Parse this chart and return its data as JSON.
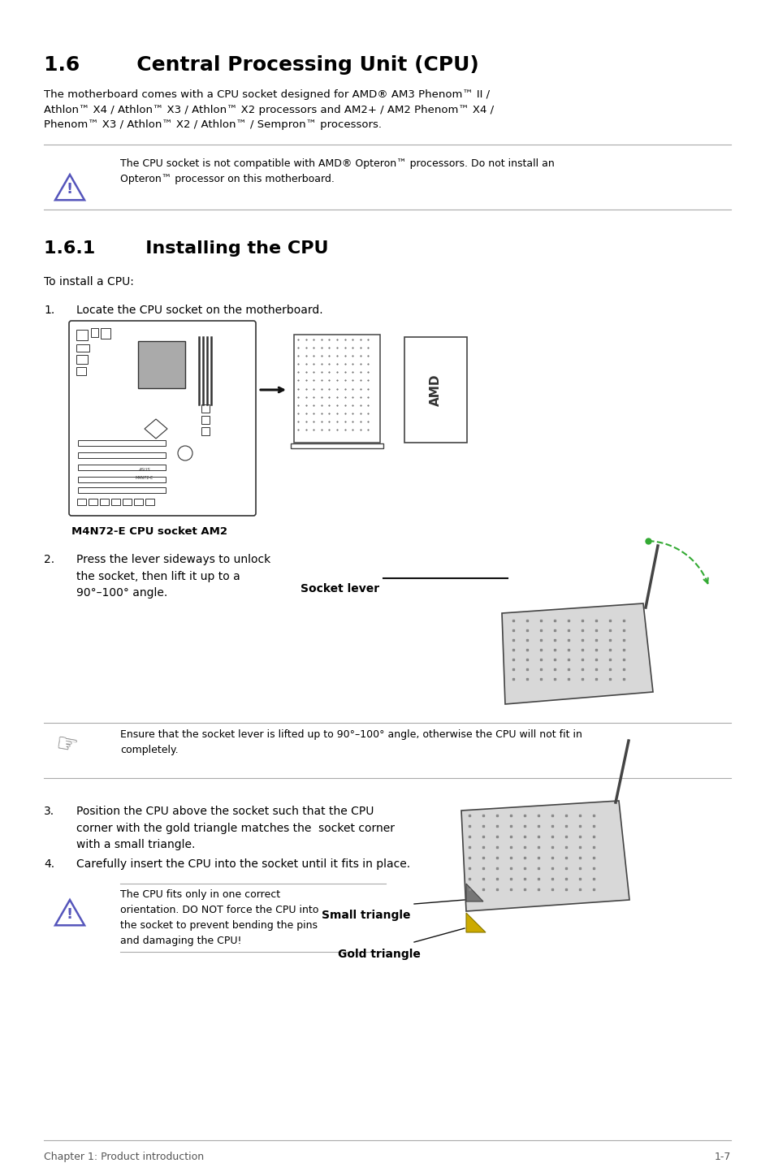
{
  "title_16": "1.6        Central Processing Unit (CPU)",
  "title_161": "1.6.1        Installing the CPU",
  "body_text": "The motherboard comes with a CPU socket designed for AMD® AM3 Phenom™ II /\nAthlon™ X4 / Athlon™ X3 / Athlon™ X2 processors and AM2+ / AM2 Phenom™ X4 /\nPhenom™ X3 / Athlon™ X2 / Athlon™ / Sempron™ processors.",
  "warning1": "The CPU socket is not compatible with AMD® Opteron™ processors. Do not install an\nOpteron™ processor on this motherboard.",
  "to_install": "To install a CPU:",
  "step1_text": "Locate the CPU socket on the motherboard.",
  "caption1": "M4N72-E CPU socket AM2",
  "step2_text": "Press the lever sideways to unlock\nthe socket, then lift it up to a\n90°–100° angle.",
  "socket_lever_label": "Socket lever",
  "note1": "Ensure that the socket lever is lifted up to 90°–100° angle, otherwise the CPU will not fit in\ncompletely.",
  "step3_text": "Position the CPU above the socket such that the CPU\ncorner with the gold triangle matches the  socket corner\nwith a small triangle.",
  "step4_text": "Carefully insert the CPU into the socket until it fits in place.",
  "warning2": "The CPU fits only in one correct\norientation. DO NOT force the CPU into\nthe socket to prevent bending the pins\nand damaging the CPU!",
  "small_triangle_label": "Small triangle",
  "gold_triangle_label": "Gold triangle",
  "footer": "Chapter 1: Product introduction",
  "page": "1-7",
  "bg_color": "#ffffff",
  "text_color": "#000000",
  "warn_tri_color": "#5555bb",
  "line_gray": "#aaaaaa",
  "dark": "#333333",
  "green": "#33aa33"
}
